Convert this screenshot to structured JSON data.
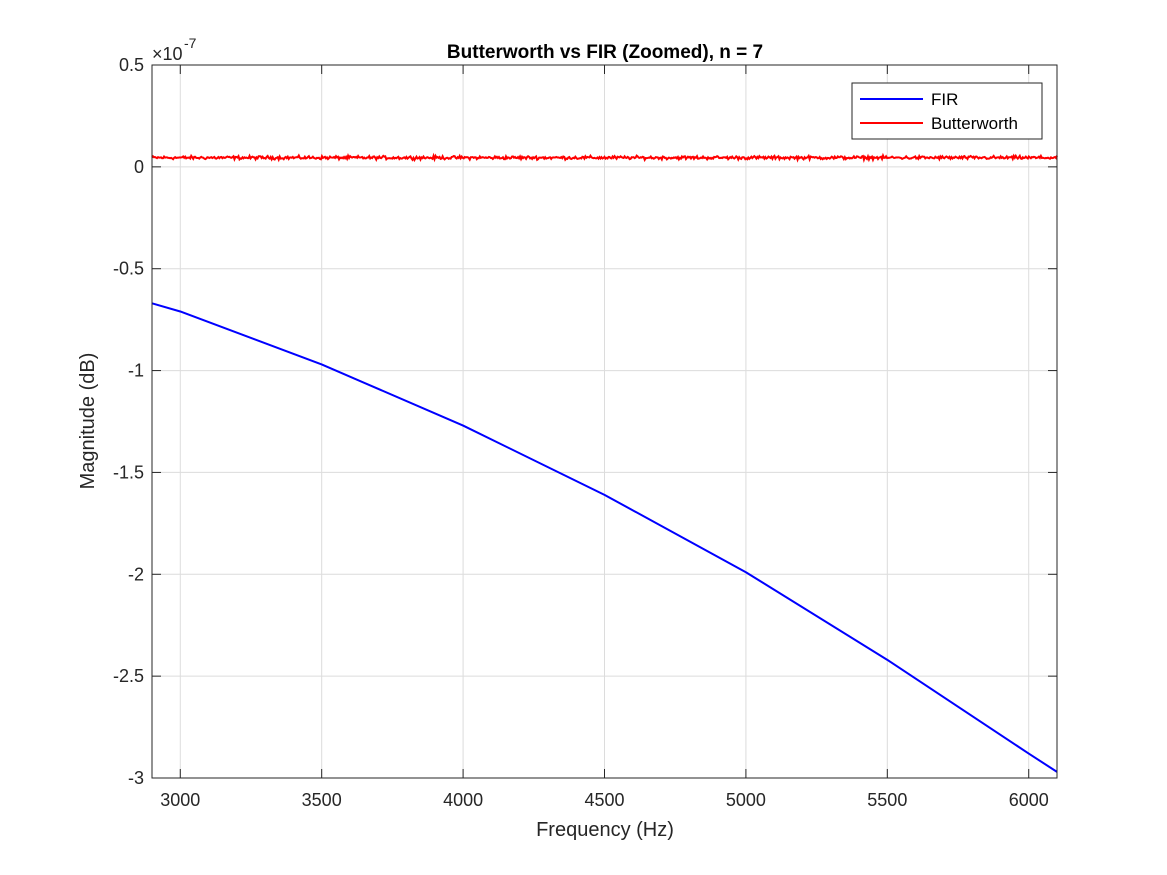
{
  "chart_data": {
    "type": "line",
    "title": "Butterworth vs FIR (Zoomed), n = 7",
    "xlabel": "Frequency (Hz)",
    "ylabel": "Magnitude (dB)",
    "y_exponent_base": "×10",
    "y_exponent_power": "-7",
    "xlim": [
      2900,
      6100
    ],
    "ylim": [
      -3.0,
      0.5
    ],
    "x_ticks": [
      3000,
      3500,
      4000,
      4500,
      5000,
      5500,
      6000
    ],
    "x_tick_labels": [
      "3000",
      "3500",
      "4000",
      "4500",
      "5000",
      "5500",
      "6000"
    ],
    "y_ticks": [
      0.5,
      0,
      -0.5,
      -1,
      -1.5,
      -2,
      -2.5,
      -3
    ],
    "y_tick_labels": [
      "0.5",
      "0",
      "-0.5",
      "-1",
      "-1.5",
      "-2",
      "-2.5",
      "-3"
    ],
    "grid": true,
    "legend_position": "top-right",
    "series": [
      {
        "name": "FIR",
        "color": "#0000ff",
        "x": [
          2900,
          3000,
          3500,
          4000,
          4500,
          5000,
          5500,
          6000,
          6100
        ],
        "y": [
          -0.67,
          -0.71,
          -0.97,
          -1.27,
          -1.61,
          -1.99,
          -2.42,
          -2.88,
          -2.97
        ]
      },
      {
        "name": "Butterworth",
        "color": "#ff0000",
        "x_start": 2900,
        "x_end": 6100,
        "y_mean": 0.045,
        "y_noise_amplitude": 0.012
      }
    ]
  }
}
